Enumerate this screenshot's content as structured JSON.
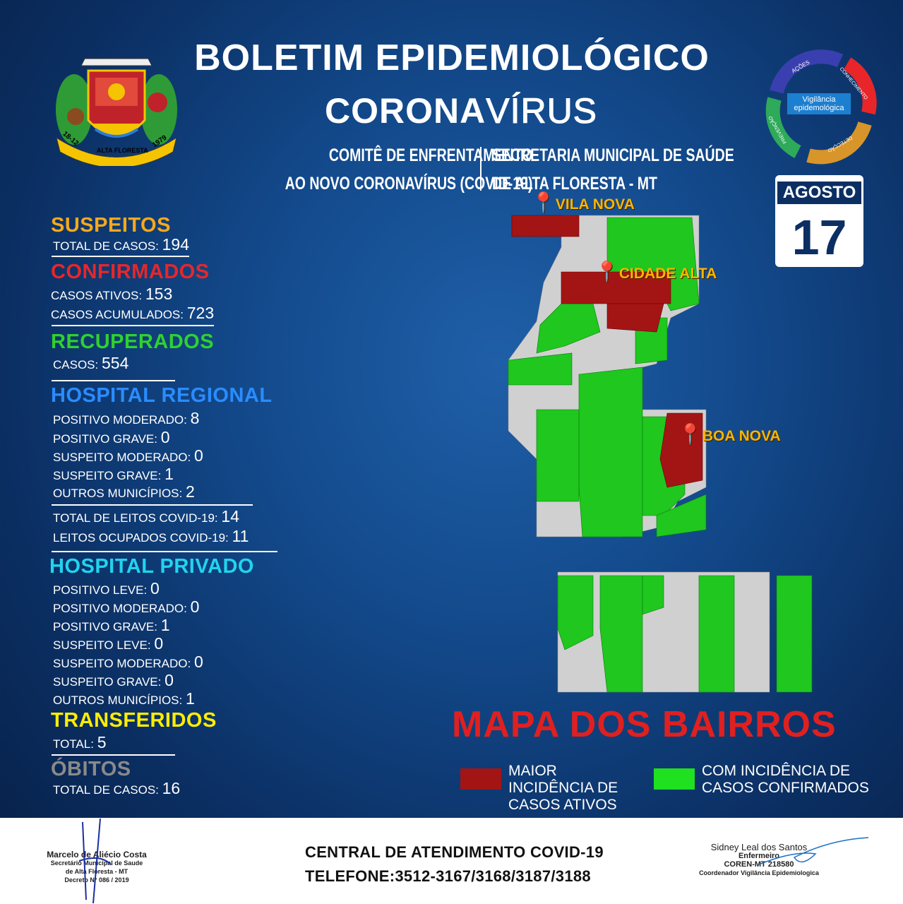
{
  "header": {
    "title_line1": "BOLETIM EPIDEMIOLÓGICO",
    "title_bold": "CORONA",
    "title_light": "VÍRUS",
    "left_sub": [
      "COMITÊ DE ENFRENTAMENTO",
      "AO NOVO CORONAVÍRUS (COVID-19)"
    ],
    "right_sub": [
      "SECRETARIA MUNICIPAL DE SAÚDE",
      "DE ALTA FLORESTA - MT"
    ]
  },
  "logo": {
    "text": "ALTA FLORESTA",
    "left_date": "18-12",
    "right_date": "1979"
  },
  "cycle": {
    "center": "Vigilância epidemológica",
    "steps": [
      "AÇÕES",
      "CONHECIMENTO",
      "DETECÇÃO",
      "PREVENÇÃO"
    ]
  },
  "date": {
    "month": "AGOSTO",
    "day": "17"
  },
  "stats": {
    "suspeitos": {
      "title": "SUSPEITOS",
      "rows": [
        {
          "label": "TOTAL DE CASOS:",
          "value": "194"
        }
      ]
    },
    "confirmados": {
      "title": "CONFIRMADOS",
      "rows": [
        {
          "label": "CASOS ATIVOS:",
          "value": "153"
        },
        {
          "label": "CASOS ACUMULADOS:",
          "value": "723"
        }
      ]
    },
    "recuperados": {
      "title": "RECUPERADOS",
      "rows": [
        {
          "label": "CASOS:",
          "value": "554"
        }
      ]
    },
    "regional": {
      "title": "HOSPITAL REGIONAL",
      "rows": [
        {
          "label": "POSITIVO  MODERADO:",
          "value": "8"
        },
        {
          "label": "POSITIVO GRAVE:",
          "value": "0"
        },
        {
          "label": "SUSPEITO MODERADO:",
          "value": "0"
        },
        {
          "label": "SUSPEITO  GRAVE:",
          "value": "1"
        },
        {
          "label": "OUTROS MUNICÍPIOS:",
          "value": "2"
        },
        {
          "label": "TOTAL DE LEITOS COVID-19:",
          "value": "14"
        },
        {
          "label": "LEITOS OCUPADOS COVID-19:",
          "value": "11"
        }
      ]
    },
    "privado": {
      "title": "HOSPITAL PRIVADO",
      "rows": [
        {
          "label": "POSITIVO  LEVE:",
          "value": "0"
        },
        {
          "label": "POSITIVO  MODERADO:",
          "value": "0"
        },
        {
          "label": "POSITIVO GRAVE:",
          "value": "1"
        },
        {
          "label": "SUSPEITO LEVE:",
          "value": "0"
        },
        {
          "label": "SUSPEITO MODERADO:",
          "value": "0"
        },
        {
          "label": "SUSPEITO GRAVE:",
          "value": "0"
        },
        {
          "label": "OUTROS MUNICÍPIOS:",
          "value": "1"
        }
      ]
    },
    "transferidos": {
      "title": "TRANSFERIDOS",
      "rows": [
        {
          "label": "TOTAL:",
          "value": "5"
        }
      ]
    },
    "obitos": {
      "title": "ÓBITOS",
      "rows": [
        {
          "label": "TOTAL DE CASOS:",
          "value": "16"
        }
      ]
    }
  },
  "colors": {
    "suspeitos": "#f7a81b",
    "confirmados": "#e8262a",
    "recuperados": "#2fd12f",
    "regional": "#2a8cff",
    "privado": "#21d4f0",
    "transferidos": "#ffee00",
    "obitos": "#8a8a8a",
    "high": "#a31515",
    "low": "#1fd11f"
  },
  "map": {
    "pins": [
      "VILA NOVA",
      "CIDADE ALTA",
      "BOA NOVA"
    ],
    "title": "MAPA DOS BAIRROS",
    "legend": [
      {
        "label": "MAIOR INCIDÊNCIA DE CASOS ATIVOS",
        "color": "#a31515"
      },
      {
        "label": "COM INCIDÊNCIA DE CASOS CONFIRMADOS",
        "color": "#1fd11f"
      }
    ]
  },
  "footer": {
    "central": "CENTRAL  DE ATENDIMENTO COVID-19",
    "phone": "TELEFONE:3512-3167/3168/3187/3188",
    "sig_left": [
      "Marcelo de Aliécio Costa",
      "Secretário Municipal de Saude",
      "de Alta Floresta - MT",
      "Decreto N° 086 / 2019"
    ],
    "sig_right": [
      "Sidney Leal dos Santos",
      "Enfermeiro",
      "COREN-MT 218580",
      "Coordenador Vigilância Epidemiologica"
    ]
  }
}
